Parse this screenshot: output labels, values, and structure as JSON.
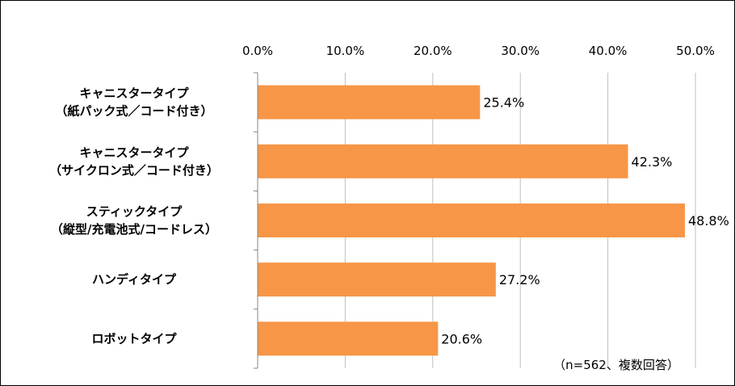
{
  "chart_data": {
    "type": "bar",
    "orientation": "horizontal",
    "categories": [
      [
        "キャニスタータイプ",
        "（紙パック式／コード付き）"
      ],
      [
        "キャニスタータイプ",
        "（サイクロン式／コード付き）"
      ],
      [
        "スティックタイプ",
        "（縦型/充電池式/コードレス）"
      ],
      [
        "ハンディタイプ"
      ],
      [
        "ロボットタイプ"
      ]
    ],
    "values": [
      25.4,
      42.3,
      48.8,
      27.2,
      20.6
    ],
    "value_labels": [
      "25.4%",
      "42.3%",
      "48.8%",
      "27.2%",
      "20.6%"
    ],
    "xlim": [
      0,
      50
    ],
    "x_ticks": [
      "0.0%",
      "10.0%",
      "20.0%",
      "30.0%",
      "40.0%",
      "50.0%"
    ],
    "x_axis_position": "top",
    "bar_color": "#F79646",
    "grid": true,
    "legend": "none",
    "annotation": "（n=562、複数回答）"
  }
}
